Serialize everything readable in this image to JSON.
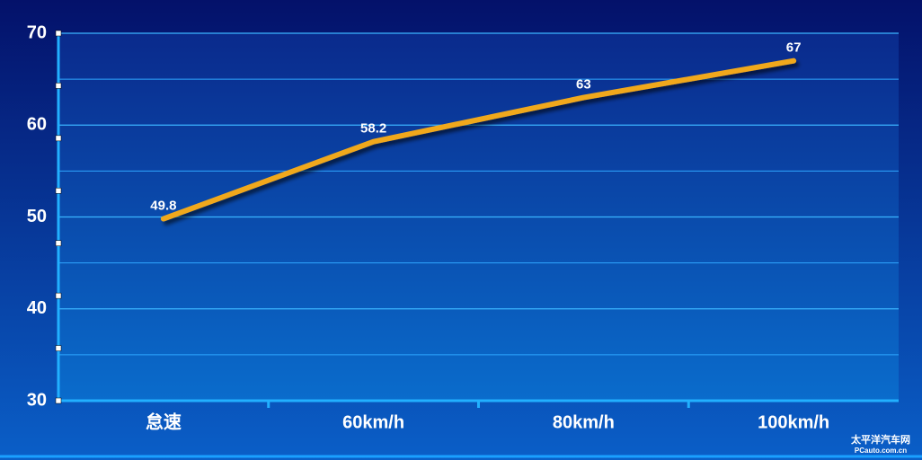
{
  "chart_data": {
    "type": "line",
    "categories": [
      "怠速",
      "60km/h",
      "80km/h",
      "100km/h"
    ],
    "series": [
      {
        "color": "#f0a81c",
        "values": [
          49.8,
          58.2,
          63,
          67
        ]
      }
    ],
    "ylim": [
      30,
      70
    ],
    "yticks": [
      30,
      40,
      50,
      60,
      70
    ],
    "yticks_minor": [
      35,
      45,
      55,
      65
    ],
    "grid": true
  },
  "watermark": {
    "title": "太平洋汽车网",
    "url": "PCauto.com.cn"
  }
}
